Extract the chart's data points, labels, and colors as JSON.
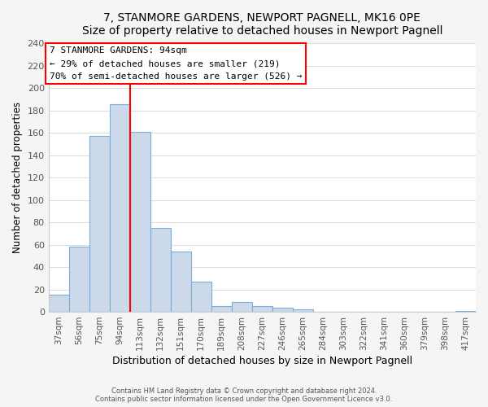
{
  "title": "7, STANMORE GARDENS, NEWPORT PAGNELL, MK16 0PE",
  "subtitle": "Size of property relative to detached houses in Newport Pagnell",
  "xlabel": "Distribution of detached houses by size in Newport Pagnell",
  "ylabel": "Number of detached properties",
  "bar_labels": [
    "37sqm",
    "56sqm",
    "75sqm",
    "94sqm",
    "113sqm",
    "132sqm",
    "151sqm",
    "170sqm",
    "189sqm",
    "208sqm",
    "227sqm",
    "246sqm",
    "265sqm",
    "284sqm",
    "303sqm",
    "322sqm",
    "341sqm",
    "360sqm",
    "379sqm",
    "398sqm",
    "417sqm"
  ],
  "bar_values": [
    15,
    58,
    157,
    186,
    161,
    75,
    54,
    27,
    5,
    9,
    5,
    4,
    2,
    0,
    0,
    0,
    0,
    0,
    0,
    0,
    1
  ],
  "bar_color": "#ccd9ea",
  "bar_edge_color": "#7aaed6",
  "vline_x": 3.5,
  "vline_color": "red",
  "annotation_title": "7 STANMORE GARDENS: 94sqm",
  "annotation_line1": "← 29% of detached houses are smaller (219)",
  "annotation_line2": "70% of semi-detached houses are larger (526) →",
  "annotation_box_color": "white",
  "annotation_box_edge": "red",
  "ylim": [
    0,
    240
  ],
  "yticks": [
    0,
    20,
    40,
    60,
    80,
    100,
    120,
    140,
    160,
    180,
    200,
    220,
    240
  ],
  "footer1": "Contains HM Land Registry data © Crown copyright and database right 2024.",
  "footer2": "Contains public sector information licensed under the Open Government Licence v3.0.",
  "background_color": "#ffffff",
  "fig_background": "#f5f5f5"
}
